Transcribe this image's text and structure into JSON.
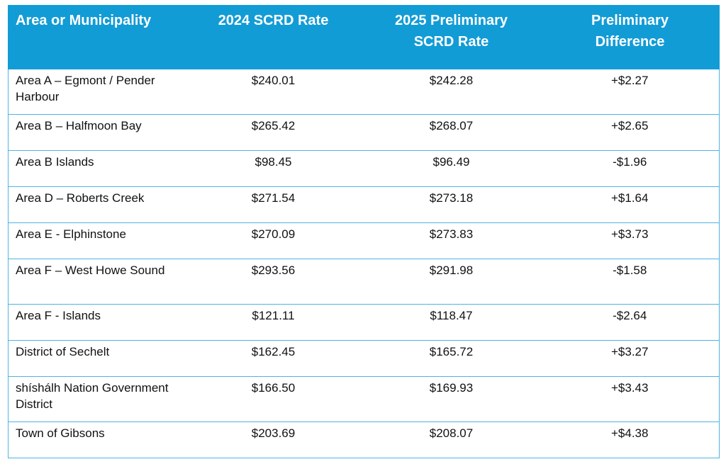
{
  "table": {
    "headers": [
      "Area or Municipality",
      "2024 SCRD Rate",
      "2025 Preliminary SCRD Rate",
      "Preliminary Difference"
    ],
    "header_lines": [
      [
        "Area or Municipality"
      ],
      [
        "2024 SCRD Rate"
      ],
      [
        "2025 Preliminary",
        "SCRD Rate"
      ],
      [
        "Preliminary",
        "Difference"
      ]
    ],
    "rows": [
      {
        "area": "Area A – Egmont / Pender Harbour",
        "rate_2024": "$240.01",
        "rate_2025": "$242.28",
        "difference": "+$2.27"
      },
      {
        "area": "Area B – Halfmoon Bay",
        "rate_2024": "$265.42",
        "rate_2025": "$268.07",
        "difference": "+$2.65"
      },
      {
        "area": "Area B Islands",
        "rate_2024": "$98.45",
        "rate_2025": "$96.49",
        "difference": "-$1.96"
      },
      {
        "area": "Area D – Roberts Creek",
        "rate_2024": "$271.54",
        "rate_2025": "$273.18",
        "difference": "+$1.64"
      },
      {
        "area": "Area E - Elphinstone",
        "rate_2024": "$270.09",
        "rate_2025": "$273.83",
        "difference": "+$3.73"
      },
      {
        "area": "Area F – West Howe Sound",
        "rate_2024": "$293.56",
        "rate_2025": "$291.98",
        "difference": "-$1.58"
      },
      {
        "area": "Area F - Islands",
        "rate_2024": "$121.11",
        "rate_2025": "$118.47",
        "difference": "-$2.64"
      },
      {
        "area": "District of Sechelt",
        "rate_2024": "$162.45",
        "rate_2025": "$165.72",
        "difference": "+$3.27"
      },
      {
        "area": "shíshálh Nation Government District",
        "rate_2024": "$166.50",
        "rate_2025": "$169.93",
        "difference": "+$3.43"
      },
      {
        "area": "Town of Gibsons",
        "rate_2024": "$203.69",
        "rate_2025": "$208.07",
        "difference": "+$4.38"
      }
    ]
  },
  "colors": {
    "header_background": "#129cd6",
    "header_text": "#ffffff",
    "grid_line": "#4fb3e3",
    "body_text": "#111111"
  }
}
